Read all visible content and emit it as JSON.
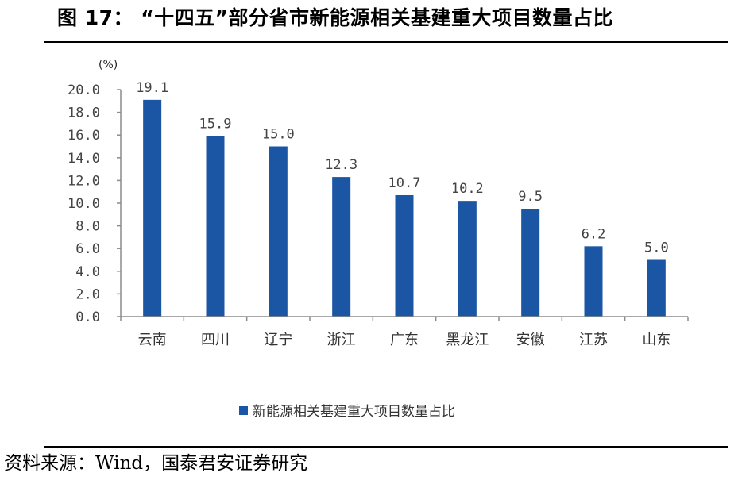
{
  "header": {
    "title": "图 17：  “十四五”部分省市新能源相关基建重大项目数量占比"
  },
  "footer": {
    "source": "资料来源：Wind，国泰君安证券研究"
  },
  "chart_data": {
    "type": "bar",
    "title": "",
    "xlabel": "",
    "ylabel": "(%)",
    "ylim": [
      0,
      20
    ],
    "yticks": [
      "0.0",
      "2.0",
      "4.0",
      "6.0",
      "8.0",
      "10.0",
      "12.0",
      "14.0",
      "16.0",
      "18.0",
      "20.0"
    ],
    "categories": [
      "云南",
      "四川",
      "辽宁",
      "浙江",
      "广东",
      "黑龙江",
      "安徽",
      "江苏",
      "山东"
    ],
    "series": [
      {
        "name": "新能源相关基建重大项目数量占比",
        "values": [
          19.1,
          15.9,
          15.0,
          12.3,
          10.7,
          10.2,
          9.5,
          6.2,
          5.0
        ],
        "labels": [
          "19.1",
          "15.9",
          "15.0",
          "12.3",
          "10.7",
          "10.2",
          "9.5",
          "6.2",
          "5.0"
        ]
      }
    ],
    "colors": {
      "bar": "#1a56a4",
      "axis": "#8c8c8c"
    },
    "grid": false,
    "legend": "bottom-center"
  }
}
